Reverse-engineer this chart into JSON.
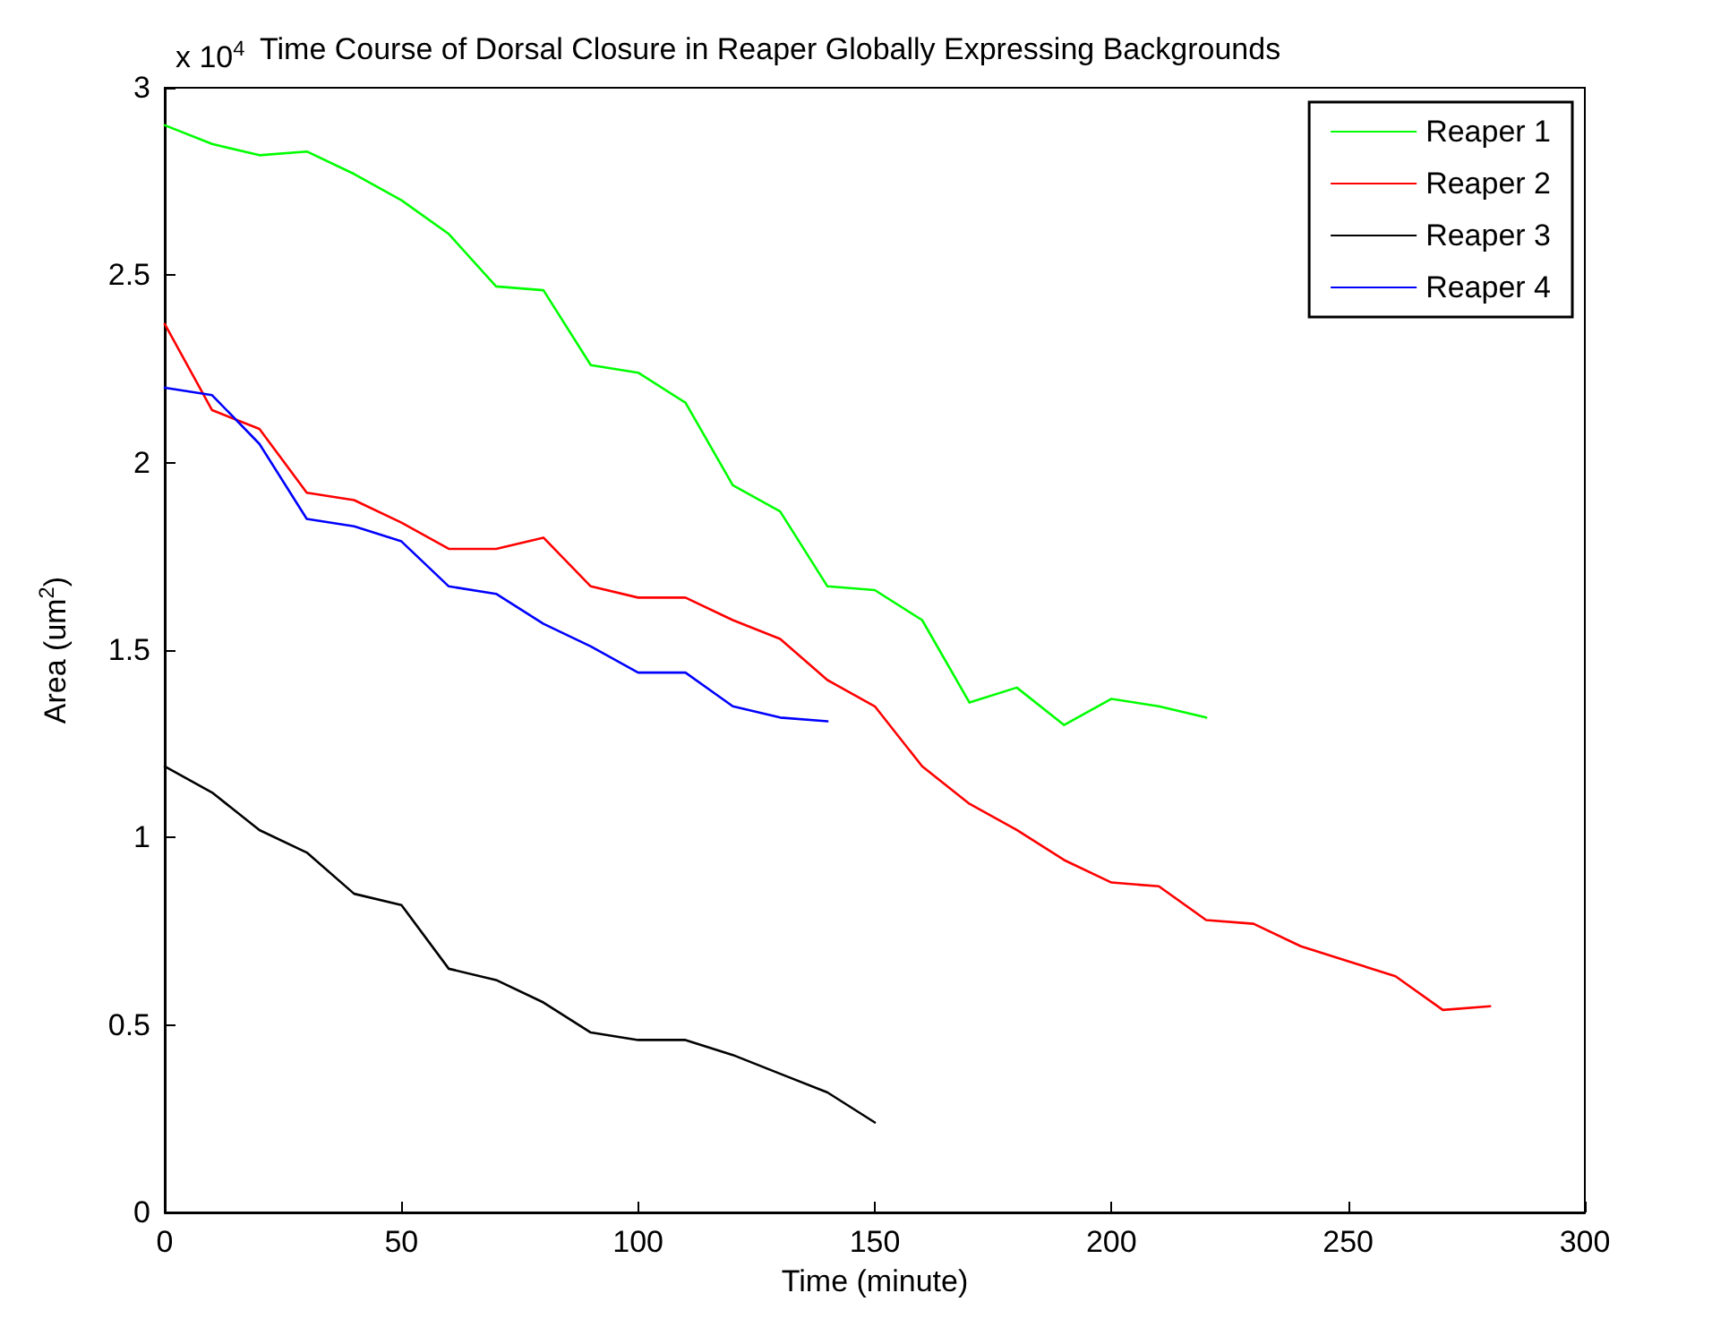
{
  "chart_data": {
    "type": "line",
    "title": "Time Course of Dorsal Closure in Reaper Globally Expressing Backgrounds",
    "xlabel": "Time (minute)",
    "ylabel": "Area (um$^{2}$)",
    "annotations": [
      "x 10$^{4}$"
    ],
    "xlim": [
      0,
      300
    ],
    "xticks": [
      0,
      50,
      100,
      150,
      200,
      250,
      300
    ],
    "ylim": [
      0,
      3
    ],
    "yticks": [
      0,
      0.5,
      1,
      1.5,
      2,
      2.5,
      3
    ],
    "grid": false,
    "legend": "top right",
    "marker": "none",
    "line_style": "solid",
    "series": [
      {
        "name": "Reaper 1",
        "color": "#00ff00",
        "x": [
          0,
          10,
          20,
          30,
          40,
          50,
          60,
          70,
          80,
          90,
          100,
          110,
          120,
          130,
          140,
          150,
          160,
          170,
          180,
          190,
          200,
          210,
          220
        ],
        "values": [
          2.9,
          2.85,
          2.82,
          2.83,
          2.77,
          2.7,
          2.61,
          2.47,
          2.46,
          2.26,
          2.24,
          2.16,
          1.94,
          1.87,
          1.67,
          1.66,
          1.58,
          1.36,
          1.4,
          1.3,
          1.37,
          1.35,
          1.32
        ]
      },
      {
        "name": "Reaper 2",
        "color": "#ff0000",
        "x": [
          0,
          10,
          20,
          30,
          40,
          50,
          60,
          70,
          80,
          90,
          100,
          110,
          120,
          130,
          140,
          150,
          160,
          170,
          180,
          190,
          200,
          210,
          220,
          230,
          240,
          250,
          260,
          270,
          280
        ],
        "values": [
          2.37,
          2.14,
          2.09,
          1.92,
          1.9,
          1.84,
          1.77,
          1.77,
          1.8,
          1.67,
          1.64,
          1.64,
          1.58,
          1.53,
          1.42,
          1.35,
          1.19,
          1.09,
          1.02,
          0.94,
          0.88,
          0.87,
          0.78,
          0.77,
          0.71,
          0.67,
          0.63,
          0.54,
          0.55
        ]
      },
      {
        "name": "Reaper 3",
        "color": "#000000",
        "x": [
          0,
          10,
          20,
          30,
          40,
          50,
          60,
          70,
          80,
          90,
          100,
          110,
          120,
          130,
          140,
          150
        ],
        "values": [
          1.19,
          1.12,
          1.02,
          0.96,
          0.85,
          0.82,
          0.65,
          0.62,
          0.56,
          0.48,
          0.46,
          0.46,
          0.42,
          0.37,
          0.32,
          0.24
        ]
      },
      {
        "name": "Reaper 4",
        "color": "#0000ff",
        "x": [
          0,
          10,
          20,
          30,
          40,
          50,
          60,
          70,
          80,
          90,
          100,
          110,
          120,
          130,
          140
        ],
        "values": [
          2.2,
          2.18,
          2.05,
          1.85,
          1.83,
          1.79,
          1.67,
          1.65,
          1.57,
          1.51,
          1.44,
          1.44,
          1.35,
          1.32,
          1.31
        ]
      }
    ]
  }
}
